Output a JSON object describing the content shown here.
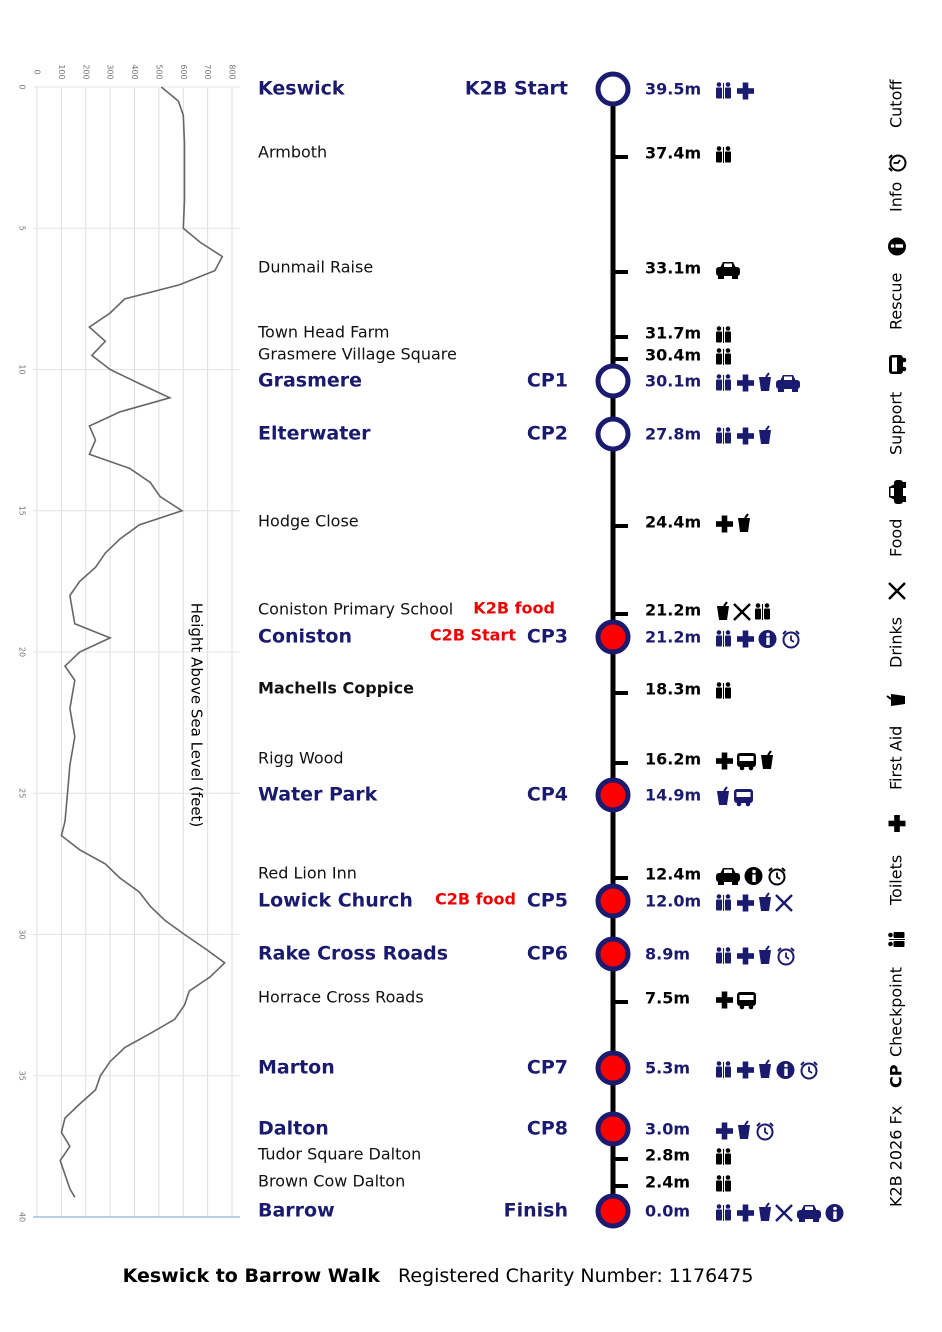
{
  "chart_data": {
    "type": "line",
    "title": "Height Above Sea Level (feet)",
    "x": [
      0,
      0.5,
      1,
      2,
      3,
      4,
      5,
      5.5,
      6,
      6.5,
      7,
      7.5,
      8,
      8.5,
      9,
      9.5,
      10,
      10.5,
      11,
      11.5,
      12,
      12.5,
      13,
      13.5,
      14,
      14.5,
      15,
      15.5,
      16,
      16.5,
      17,
      17.5,
      18,
      18.5,
      19,
      19.5,
      20,
      20.5,
      21,
      22,
      23,
      24,
      25,
      26,
      26.5,
      27,
      27.5,
      28,
      28.5,
      29,
      29.5,
      30,
      30.5,
      31,
      31.5,
      32,
      32.5,
      33,
      33.5,
      34,
      34.5,
      35,
      35.5,
      36,
      36.5,
      37,
      37.5,
      38,
      38.5,
      39,
      39.3
    ],
    "series": [
      {
        "color": "#666666",
        "values": [
          510,
          580,
          600,
          605,
          605,
          605,
          600,
          670,
          760,
          730,
          585,
          360,
          300,
          215,
          280,
          225,
          300,
          420,
          545,
          340,
          215,
          240,
          215,
          380,
          465,
          505,
          595,
          420,
          340,
          280,
          240,
          175,
          135,
          145,
          155,
          300,
          175,
          115,
          155,
          135,
          155,
          135,
          125,
          115,
          100,
          175,
          280,
          340,
          420,
          465,
          525,
          605,
          690,
          770,
          710,
          625,
          605,
          565,
          465,
          360,
          300,
          260,
          240,
          175,
          115,
          100,
          135,
          95,
          115,
          135,
          155
        ]
      }
    ],
    "xlim": [
      0,
      40
    ],
    "xticks": [
      0,
      5,
      10,
      15,
      20,
      25,
      30,
      35,
      40
    ],
    "ylim": [
      0,
      800
    ],
    "yticks": [
      0,
      100,
      200,
      300,
      400,
      500,
      600,
      700,
      800
    ],
    "grid": true
  },
  "stops": [
    {
      "name": "Keswick",
      "label": "K2B Start",
      "distance": "39.5m",
      "icons": [
        1,
        2
      ]
    },
    {
      "name": "Armboth",
      "distance": "37.4m",
      "icons": [
        1
      ]
    },
    {
      "name": "Dunmail Raise",
      "distance": "33.1m",
      "icons": [
        5
      ]
    },
    {
      "name": "Town Head Farm",
      "distance": "31.7m",
      "icons": [
        1
      ]
    },
    {
      "name": "Grasmere Village Square",
      "distance": "30.4m",
      "icons": [
        1
      ]
    },
    {
      "name": "Grasmere",
      "label": "CP1",
      "distance": "30.1m",
      "icons": [
        1,
        2,
        3,
        5
      ]
    },
    {
      "name": "Elterwater",
      "label": "CP2",
      "distance": "27.8m",
      "icons": [
        1,
        2,
        3
      ]
    },
    {
      "name": "Hodge Close",
      "distance": "24.4m",
      "icons": [
        2,
        3
      ]
    },
    {
      "name": "Coniston Primary School",
      "note": "K2B food",
      "distance": "21.2m",
      "icons": [
        3,
        4,
        1
      ]
    },
    {
      "name": "Coniston",
      "note": "C2B Start",
      "label": "CP3",
      "distance": "21.2m",
      "icons": [
        1,
        2,
        7,
        8
      ]
    },
    {
      "name": "Machells Coppice",
      "distance": "18.3m",
      "icons": [
        1
      ]
    },
    {
      "name": "Rigg Wood",
      "distance": "16.2m",
      "icons": [
        2,
        6,
        3
      ]
    },
    {
      "name": "Water Park",
      "label": "CP4",
      "distance": "14.9m",
      "icons": [
        3,
        6
      ]
    },
    {
      "name": "Red Lion Inn",
      "distance": "12.4m",
      "icons": [
        5,
        7,
        8
      ]
    },
    {
      "name": "Lowick Church",
      "note": "C2B food",
      "label": "CP5",
      "distance": "12.0m",
      "icons": [
        1,
        2,
        3,
        4
      ]
    },
    {
      "name": "Rake Cross Roads",
      "label": "CP6",
      "distance": "8.9m",
      "icons": [
        1,
        2,
        3,
        8
      ]
    },
    {
      "name": "Horrace Cross Roads",
      "distance": "7.5m",
      "icons": [
        2,
        6
      ]
    },
    {
      "name": "Marton",
      "label": "CP7",
      "distance": "5.3m",
      "icons": [
        1,
        2,
        3,
        7,
        8
      ]
    },
    {
      "name": "Dalton",
      "label": "CP8",
      "distance": "3.0m",
      "icons": [
        2,
        3,
        8
      ]
    },
    {
      "name": "Tudor Square Dalton",
      "distance": "2.8m",
      "icons": [
        1
      ]
    },
    {
      "name": "Brown Cow Dalton",
      "distance": "2.4m",
      "icons": [
        1
      ]
    },
    {
      "name": "Barrow",
      "label": "Finish",
      "distance": "0.0m",
      "icons": [
        1,
        2,
        3,
        4,
        5,
        7
      ]
    }
  ],
  "legend": {
    "code": "K2B 2026 Fx",
    "items": [
      {
        "symbol": "CP",
        "label": "Checkpoint"
      },
      {
        "label": "Toilets"
      },
      {
        "label": "First Aid"
      },
      {
        "label": "Drinks"
      },
      {
        "label": "Food"
      },
      {
        "label": "Support"
      },
      {
        "label": "Rescue"
      },
      {
        "label": "Info"
      },
      {
        "label": "Cutoff"
      }
    ]
  },
  "footer": {
    "title": "Keswick to Barrow Walk",
    "charity": "Registered Charity Number: 1176475"
  }
}
